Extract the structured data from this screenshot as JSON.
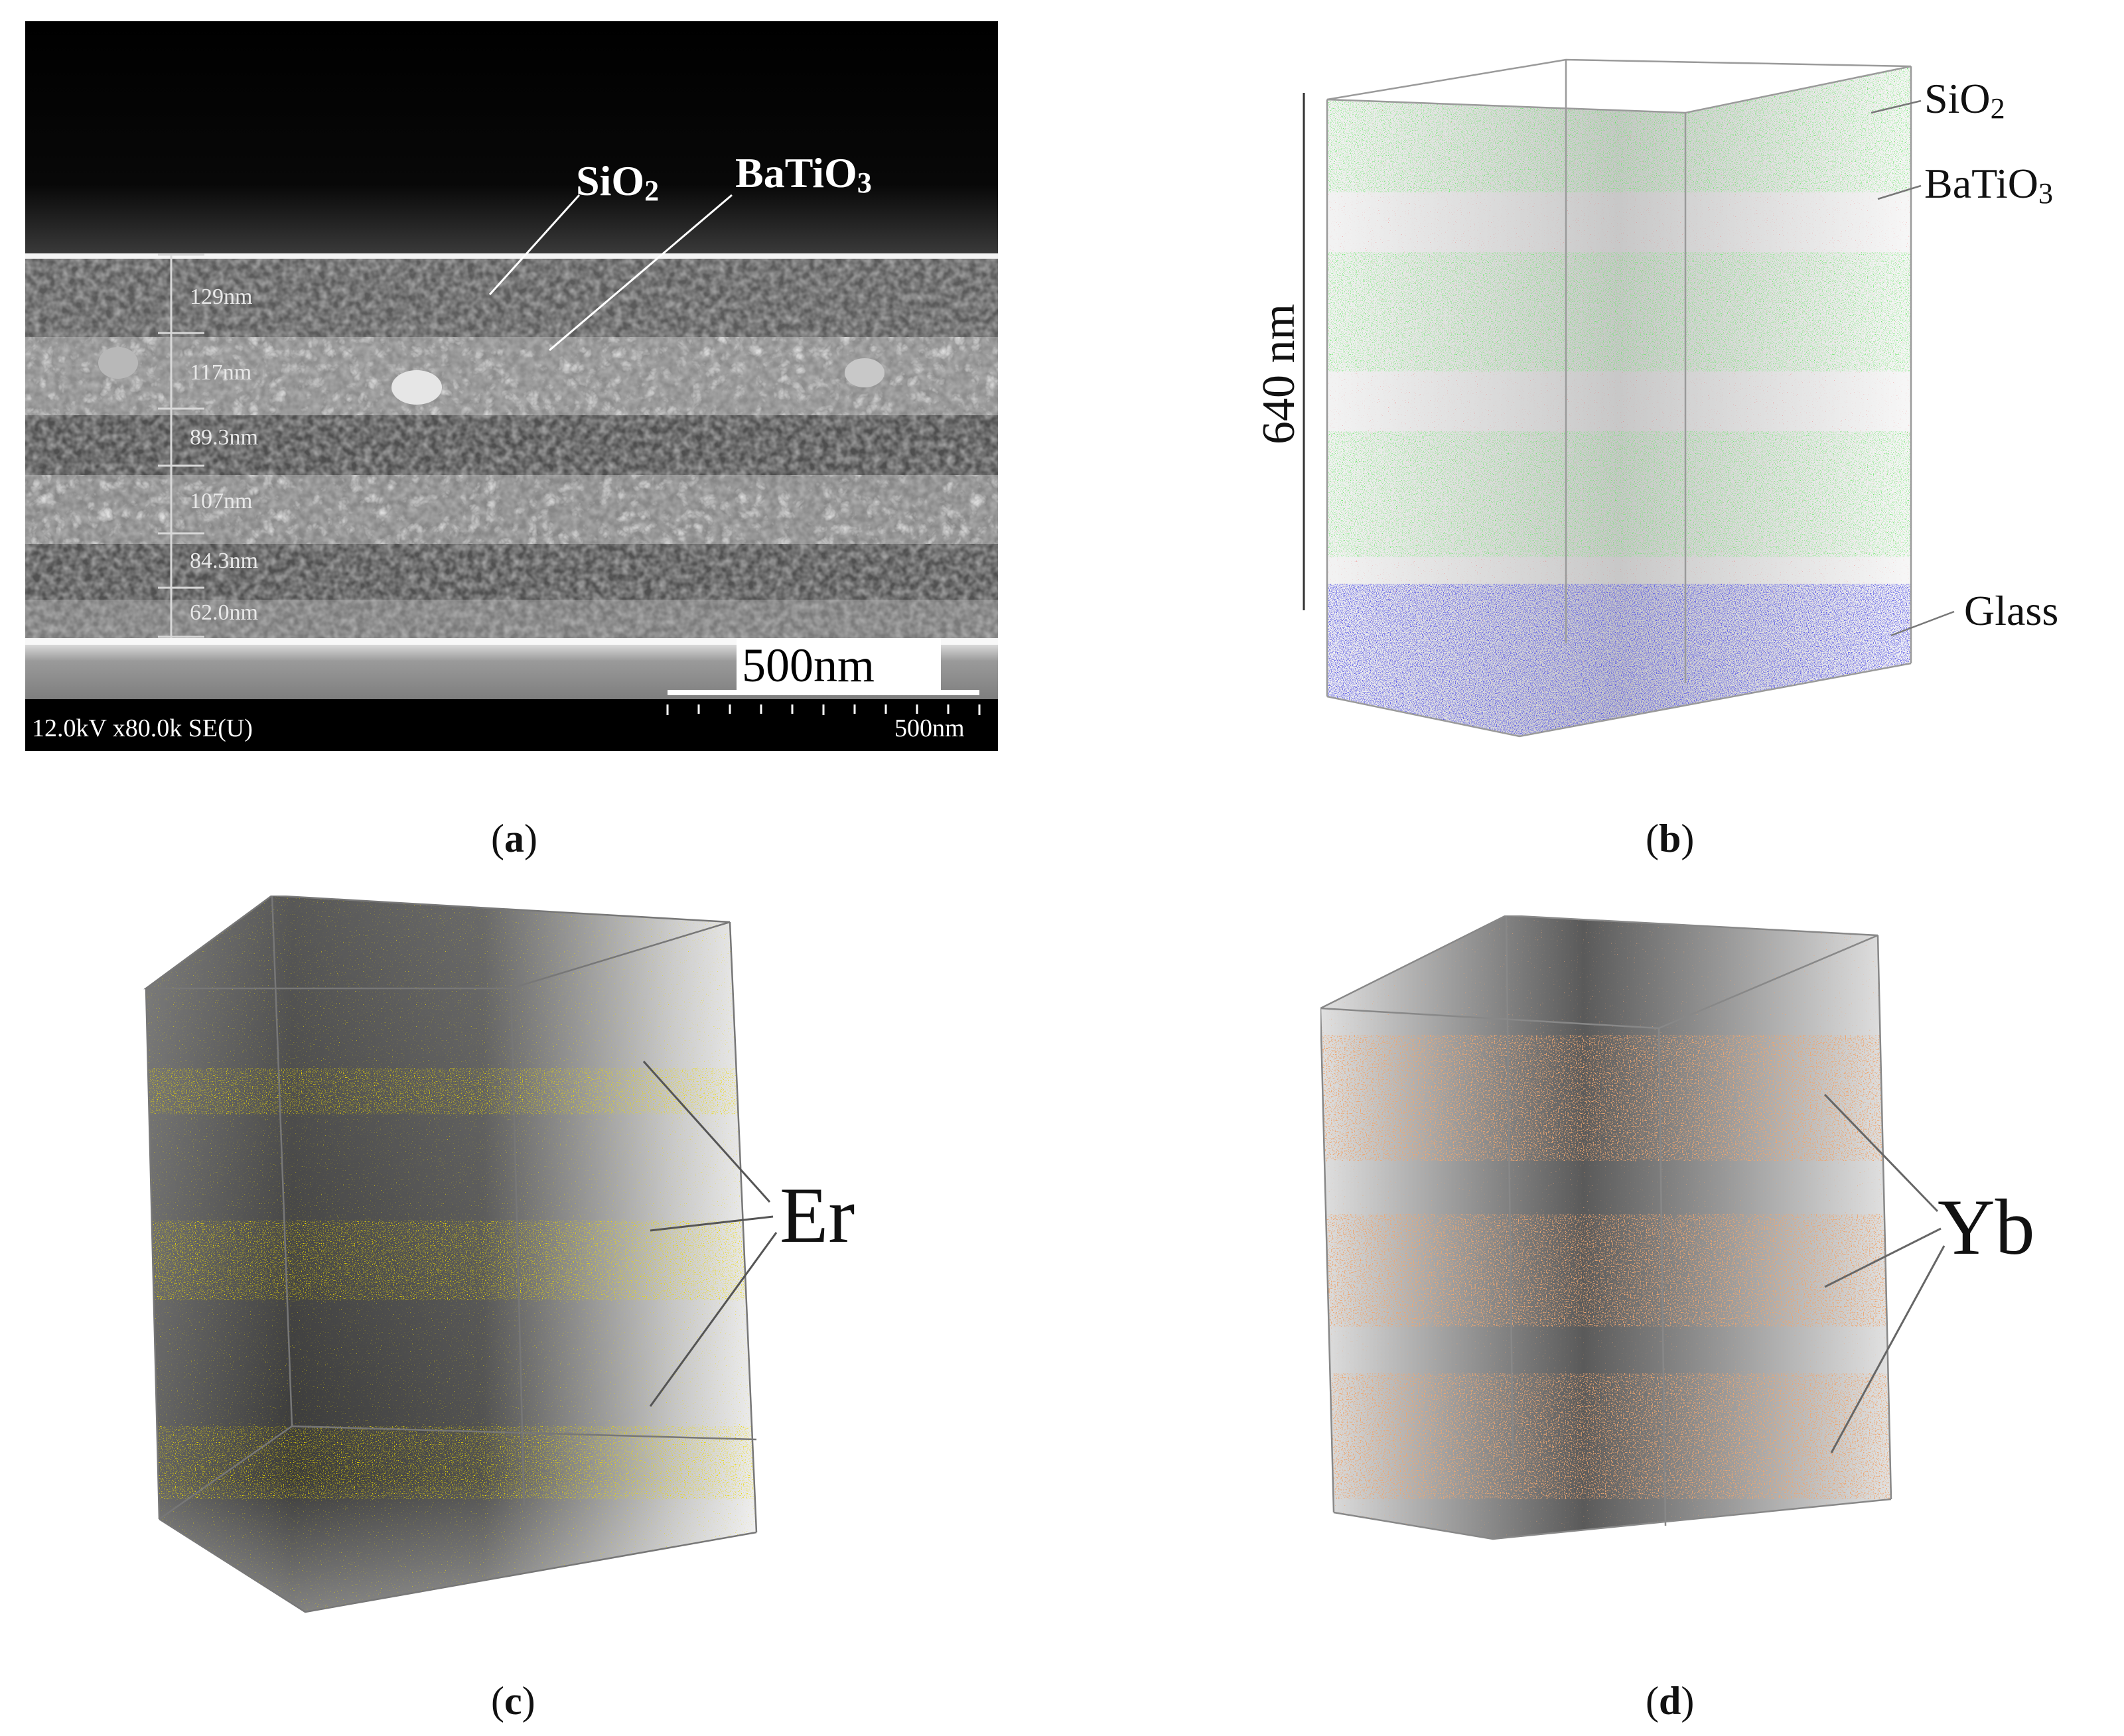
{
  "panel_a": {
    "labels": {
      "sio2": "SiO",
      "sio2_sub": "2",
      "batio3": "BaTiO",
      "batio3_sub": "3"
    },
    "measurements": [
      "129nm",
      "117nm",
      "89.3nm",
      "107nm",
      "84.3nm",
      "62.0nm"
    ],
    "scale_label": "500nm",
    "footer_left": "12.0kV x80.0k SE(U)",
    "footer_right": "500nm",
    "caption": "a"
  },
  "panel_b": {
    "height_label": "640 nm",
    "labels": {
      "sio2": "SiO",
      "sio2_sub": "2",
      "batio3": "BaTiO",
      "batio3_sub": "3",
      "glass": "Glass"
    },
    "colors": {
      "sio2": "#22cc22",
      "batio3": "#dd1111",
      "glass": "#1a1acc"
    },
    "caption": "b"
  },
  "panel_c": {
    "label": "Er",
    "color": "#d6b400",
    "caption": "c"
  },
  "panel_d": {
    "label": "Yb",
    "color": "#d9612a",
    "caption": "d"
  }
}
